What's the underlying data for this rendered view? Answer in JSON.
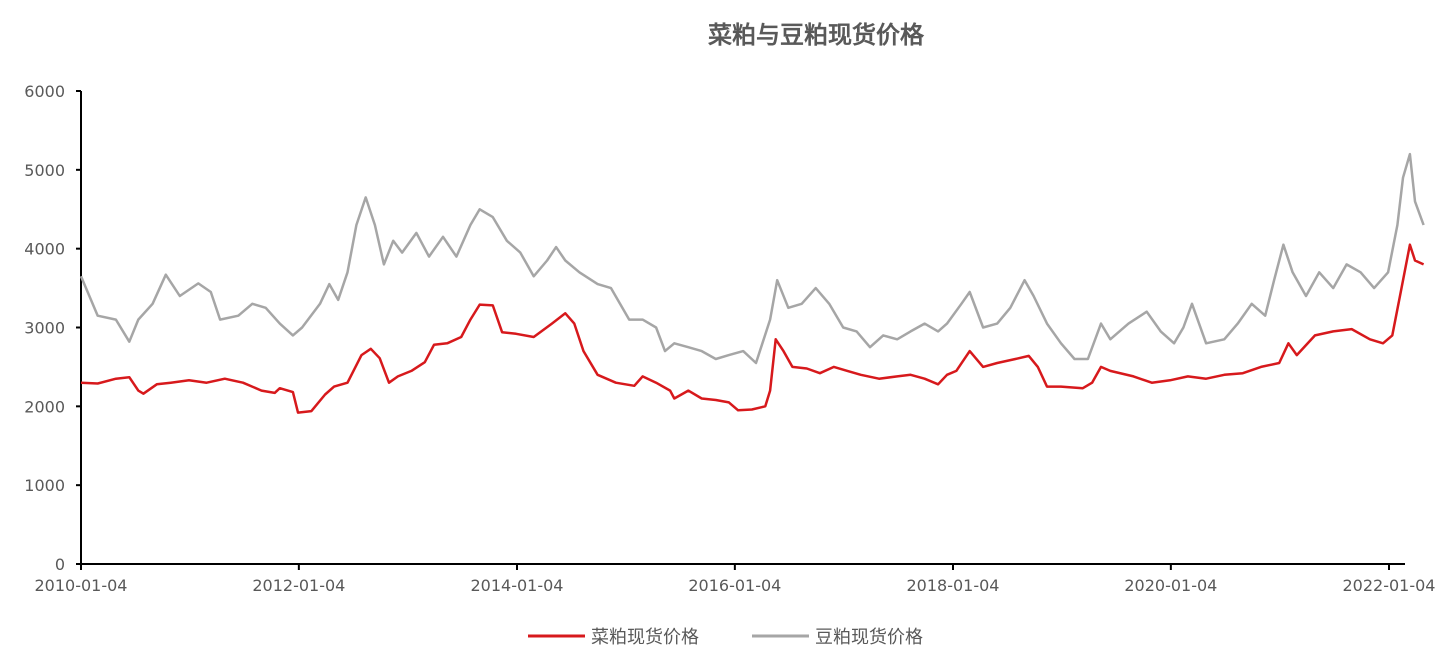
{
  "chart_data": {
    "type": "line",
    "title": "菜粕与豆粕现货价格",
    "xlabel": "",
    "ylabel": "",
    "ylim": [
      0,
      6000
    ],
    "y_ticks": [
      "0",
      "1000",
      "2000",
      "3000",
      "4000",
      "5000",
      "6000"
    ],
    "x_range": [
      "2010-01-04",
      "2022-04-30"
    ],
    "x_ticks": [
      "2010-01-04",
      "2012-01-04",
      "2014-01-04",
      "2016-01-04",
      "2018-01-04",
      "2020-01-04",
      "2022-01-04"
    ],
    "grid": false,
    "legend_position": "bottom",
    "series": [
      {
        "name": "菜粕现货价格",
        "color": "#d7191c",
        "points": [
          [
            "2010-01-04",
            2300
          ],
          [
            "2010-03-01",
            2290
          ],
          [
            "2010-05-01",
            2350
          ],
          [
            "2010-06-15",
            2370
          ],
          [
            "2010-07-15",
            2200
          ],
          [
            "2010-08-01",
            2160
          ],
          [
            "2010-09-15",
            2280
          ],
          [
            "2010-11-01",
            2300
          ],
          [
            "2011-01-01",
            2330
          ],
          [
            "2011-03-01",
            2300
          ],
          [
            "2011-05-01",
            2350
          ],
          [
            "2011-07-01",
            2300
          ],
          [
            "2011-09-01",
            2200
          ],
          [
            "2011-10-15",
            2170
          ],
          [
            "2011-11-01",
            2230
          ],
          [
            "2011-12-15",
            2180
          ],
          [
            "2012-01-01",
            1920
          ],
          [
            "2012-02-15",
            1940
          ],
          [
            "2012-04-01",
            2150
          ],
          [
            "2012-05-01",
            2250
          ],
          [
            "2012-06-15",
            2300
          ],
          [
            "2012-08-01",
            2650
          ],
          [
            "2012-09-01",
            2730
          ],
          [
            "2012-10-01",
            2610
          ],
          [
            "2012-11-01",
            2300
          ],
          [
            "2012-12-01",
            2380
          ],
          [
            "2013-01-15",
            2450
          ],
          [
            "2013-03-01",
            2560
          ],
          [
            "2013-04-01",
            2780
          ],
          [
            "2013-05-15",
            2800
          ],
          [
            "2013-07-01",
            2880
          ],
          [
            "2013-08-01",
            3100
          ],
          [
            "2013-09-01",
            3290
          ],
          [
            "2013-10-15",
            3280
          ],
          [
            "2013-11-15",
            2940
          ],
          [
            "2014-01-01",
            2920
          ],
          [
            "2014-03-01",
            2880
          ],
          [
            "2014-05-01",
            3050
          ],
          [
            "2014-06-15",
            3180
          ],
          [
            "2014-07-15",
            3050
          ],
          [
            "2014-08-15",
            2700
          ],
          [
            "2014-10-01",
            2400
          ],
          [
            "2014-12-01",
            2300
          ],
          [
            "2015-02-01",
            2260
          ],
          [
            "2015-03-01",
            2380
          ],
          [
            "2015-04-15",
            2300
          ],
          [
            "2015-06-01",
            2200
          ],
          [
            "2015-06-15",
            2100
          ],
          [
            "2015-08-01",
            2200
          ],
          [
            "2015-09-15",
            2100
          ],
          [
            "2015-11-01",
            2080
          ],
          [
            "2015-12-15",
            2050
          ],
          [
            "2016-01-15",
            1950
          ],
          [
            "2016-03-01",
            1960
          ],
          [
            "2016-04-15",
            2000
          ],
          [
            "2016-05-01",
            2200
          ],
          [
            "2016-05-20",
            2850
          ],
          [
            "2016-06-15",
            2700
          ],
          [
            "2016-07-15",
            2500
          ],
          [
            "2016-09-01",
            2480
          ],
          [
            "2016-10-15",
            2420
          ],
          [
            "2016-12-01",
            2500
          ],
          [
            "2017-01-15",
            2450
          ],
          [
            "2017-03-01",
            2400
          ],
          [
            "2017-05-01",
            2350
          ],
          [
            "2017-07-01",
            2380
          ],
          [
            "2017-08-15",
            2400
          ],
          [
            "2017-10-01",
            2350
          ],
          [
            "2017-11-15",
            2280
          ],
          [
            "2017-12-15",
            2400
          ],
          [
            "2018-01-15",
            2450
          ],
          [
            "2018-03-01",
            2700
          ],
          [
            "2018-04-15",
            2500
          ],
          [
            "2018-06-01",
            2550
          ],
          [
            "2018-08-01",
            2600
          ],
          [
            "2018-09-15",
            2640
          ],
          [
            "2018-10-15",
            2500
          ],
          [
            "2018-11-15",
            2250
          ],
          [
            "2019-01-01",
            2250
          ],
          [
            "2019-03-15",
            2230
          ],
          [
            "2019-04-15",
            2300
          ],
          [
            "2019-05-15",
            2500
          ],
          [
            "2019-06-15",
            2450
          ],
          [
            "2019-09-01",
            2380
          ],
          [
            "2019-11-01",
            2300
          ],
          [
            "2020-01-01",
            2330
          ],
          [
            "2020-03-01",
            2380
          ],
          [
            "2020-05-01",
            2350
          ],
          [
            "2020-07-01",
            2400
          ],
          [
            "2020-09-01",
            2420
          ],
          [
            "2020-11-01",
            2500
          ],
          [
            "2021-01-01",
            2550
          ],
          [
            "2021-02-01",
            2800
          ],
          [
            "2021-03-01",
            2650
          ],
          [
            "2021-05-01",
            2900
          ],
          [
            "2021-07-01",
            2950
          ],
          [
            "2021-09-01",
            2980
          ],
          [
            "2021-11-01",
            2850
          ],
          [
            "2021-12-15",
            2800
          ],
          [
            "2022-01-15",
            2900
          ],
          [
            "2022-02-15",
            3500
          ],
          [
            "2022-03-15",
            4050
          ],
          [
            "2022-04-01",
            3850
          ],
          [
            "2022-04-30",
            3800
          ]
        ]
      },
      {
        "name": "豆粕现货价格",
        "color": "#a6a6a6",
        "points": [
          [
            "2010-01-04",
            3650
          ],
          [
            "2010-03-01",
            3150
          ],
          [
            "2010-05-01",
            3100
          ],
          [
            "2010-06-15",
            2820
          ],
          [
            "2010-07-15",
            3100
          ],
          [
            "2010-09-01",
            3300
          ],
          [
            "2010-10-15",
            3670
          ],
          [
            "2010-12-01",
            3400
          ],
          [
            "2011-02-01",
            3560
          ],
          [
            "2011-03-15",
            3450
          ],
          [
            "2011-04-15",
            3100
          ],
          [
            "2011-06-15",
            3150
          ],
          [
            "2011-08-01",
            3300
          ],
          [
            "2011-09-15",
            3250
          ],
          [
            "2011-11-01",
            3050
          ],
          [
            "2011-12-15",
            2900
          ],
          [
            "2012-01-15",
            3000
          ],
          [
            "2012-03-15",
            3300
          ],
          [
            "2012-04-15",
            3550
          ],
          [
            "2012-05-15",
            3350
          ],
          [
            "2012-06-15",
            3700
          ],
          [
            "2012-07-15",
            4300
          ],
          [
            "2012-08-15",
            4650
          ],
          [
            "2012-09-15",
            4300
          ],
          [
            "2012-10-15",
            3800
          ],
          [
            "2012-11-15",
            4100
          ],
          [
            "2012-12-15",
            3950
          ],
          [
            "2013-02-01",
            4200
          ],
          [
            "2013-03-15",
            3900
          ],
          [
            "2013-05-01",
            4150
          ],
          [
            "2013-06-15",
            3900
          ],
          [
            "2013-08-01",
            4300
          ],
          [
            "2013-09-01",
            4500
          ],
          [
            "2013-10-15",
            4400
          ],
          [
            "2013-12-01",
            4100
          ],
          [
            "2014-01-15",
            3950
          ],
          [
            "2014-03-01",
            3650
          ],
          [
            "2014-04-15",
            3850
          ],
          [
            "2014-05-15",
            4020
          ],
          [
            "2014-06-15",
            3850
          ],
          [
            "2014-08-01",
            3700
          ],
          [
            "2014-10-01",
            3550
          ],
          [
            "2014-11-15",
            3500
          ],
          [
            "2015-01-15",
            3100
          ],
          [
            "2015-03-01",
            3100
          ],
          [
            "2015-04-15",
            3000
          ],
          [
            "2015-05-15",
            2700
          ],
          [
            "2015-06-15",
            2800
          ],
          [
            "2015-08-01",
            2750
          ],
          [
            "2015-09-15",
            2700
          ],
          [
            "2015-11-01",
            2600
          ],
          [
            "2015-12-15",
            2650
          ],
          [
            "2016-02-01",
            2700
          ],
          [
            "2016-03-15",
            2550
          ],
          [
            "2016-05-01",
            3100
          ],
          [
            "2016-05-25",
            3600
          ],
          [
            "2016-07-01",
            3250
          ],
          [
            "2016-08-15",
            3300
          ],
          [
            "2016-10-01",
            3500
          ],
          [
            "2016-11-15",
            3300
          ],
          [
            "2017-01-01",
            3000
          ],
          [
            "2017-02-15",
            2950
          ],
          [
            "2017-04-01",
            2750
          ],
          [
            "2017-05-15",
            2900
          ],
          [
            "2017-07-01",
            2850
          ],
          [
            "2017-08-15",
            2950
          ],
          [
            "2017-10-01",
            3050
          ],
          [
            "2017-11-15",
            2950
          ],
          [
            "2017-12-15",
            3050
          ],
          [
            "2018-02-01",
            3300
          ],
          [
            "2018-03-01",
            3450
          ],
          [
            "2018-04-15",
            3000
          ],
          [
            "2018-06-01",
            3050
          ],
          [
            "2018-07-15",
            3250
          ],
          [
            "2018-09-01",
            3600
          ],
          [
            "2018-10-01",
            3400
          ],
          [
            "2018-11-15",
            3050
          ],
          [
            "2019-01-01",
            2800
          ],
          [
            "2019-02-15",
            2600
          ],
          [
            "2019-04-01",
            2600
          ],
          [
            "2019-05-15",
            3050
          ],
          [
            "2019-06-15",
            2850
          ],
          [
            "2019-08-15",
            3050
          ],
          [
            "2019-10-15",
            3200
          ],
          [
            "2019-12-01",
            2950
          ],
          [
            "2020-01-15",
            2800
          ],
          [
            "2020-02-15",
            3000
          ],
          [
            "2020-03-15",
            3300
          ],
          [
            "2020-05-01",
            2800
          ],
          [
            "2020-07-01",
            2850
          ],
          [
            "2020-08-15",
            3050
          ],
          [
            "2020-10-01",
            3300
          ],
          [
            "2020-11-15",
            3150
          ],
          [
            "2020-12-15",
            3600
          ],
          [
            "2021-01-15",
            4050
          ],
          [
            "2021-02-15",
            3700
          ],
          [
            "2021-04-01",
            3400
          ],
          [
            "2021-05-15",
            3700
          ],
          [
            "2021-07-01",
            3500
          ],
          [
            "2021-08-15",
            3800
          ],
          [
            "2021-10-01",
            3700
          ],
          [
            "2021-11-15",
            3500
          ],
          [
            "2022-01-01",
            3700
          ],
          [
            "2022-02-01",
            4300
          ],
          [
            "2022-02-20",
            4900
          ],
          [
            "2022-03-15",
            5200
          ],
          [
            "2022-04-01",
            4600
          ],
          [
            "2022-04-30",
            4300
          ]
        ]
      }
    ]
  }
}
